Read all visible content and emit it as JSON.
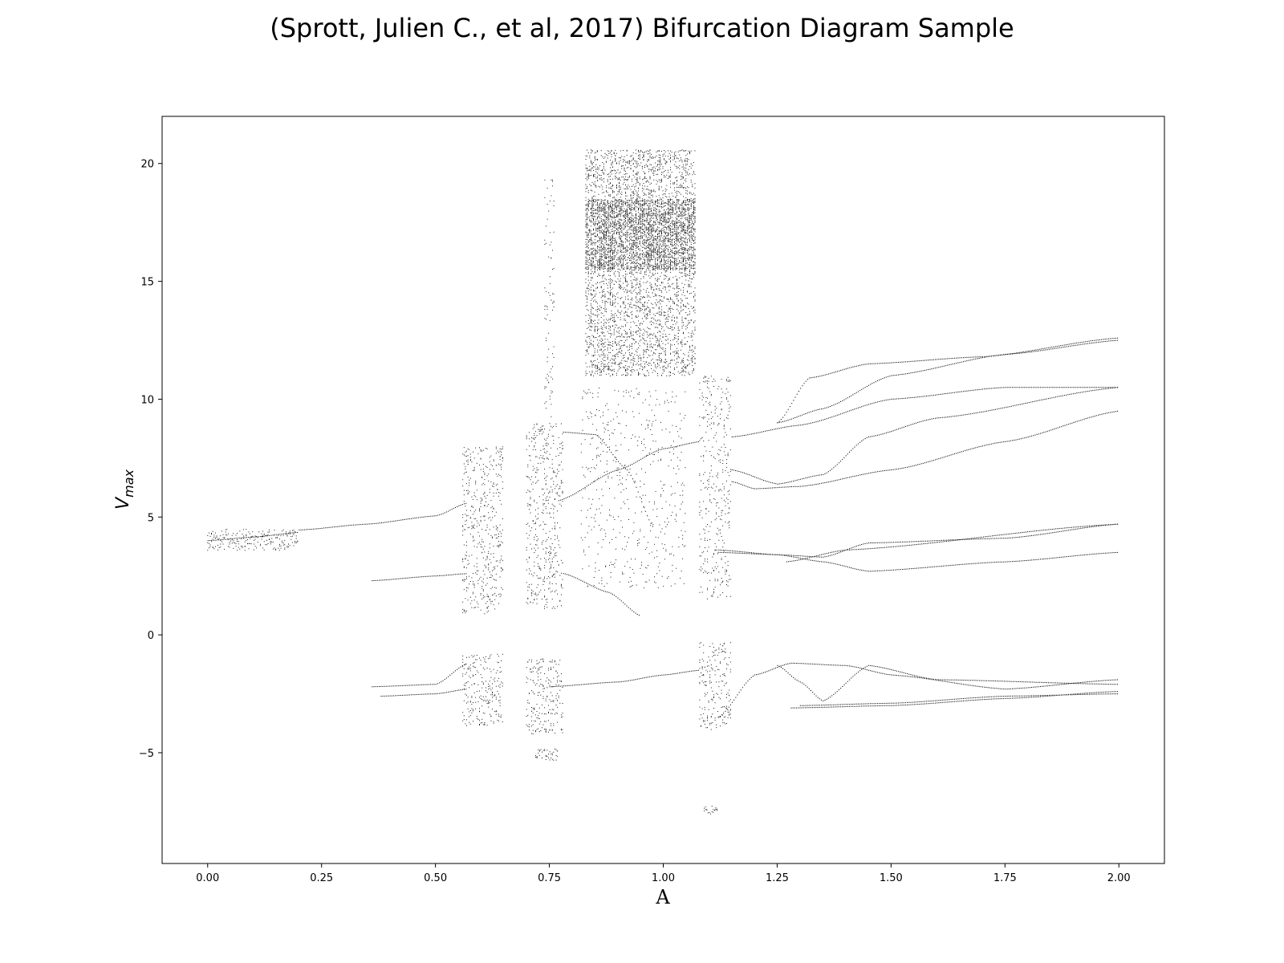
{
  "chart_data": {
    "type": "scatter",
    "title": "(Sprott, Julien C., et al, 2017) Bifurcation Diagram Sample",
    "xlabel": "A",
    "ylabel_main": "V",
    "ylabel_sub": "max",
    "xlim": [
      -0.1,
      2.1
    ],
    "ylim": [
      -9.7,
      22
    ],
    "xticks": [
      0.0,
      0.25,
      0.5,
      0.75,
      1.0,
      1.25,
      1.5,
      1.75,
      2.0
    ],
    "xtick_labels": [
      "0.00",
      "0.25",
      "0.50",
      "0.75",
      "1.00",
      "1.25",
      "1.50",
      "1.75",
      "2.00"
    ],
    "yticks": [
      -5,
      0,
      5,
      10,
      15,
      20
    ],
    "ytick_labels": [
      "−5",
      "0",
      "5",
      "10",
      "15",
      "20"
    ],
    "grid": false,
    "legend": "none",
    "point_color": "#000000",
    "branches": [
      {
        "x": [
          0.0,
          0.1,
          0.2
        ],
        "y": [
          4.0,
          4.15,
          4.35
        ]
      },
      {
        "x": [
          0.2,
          0.35,
          0.5,
          0.57
        ],
        "y": [
          4.45,
          4.7,
          5.05,
          5.6
        ]
      },
      {
        "x": [
          0.36,
          0.5,
          0.57
        ],
        "y": [
          2.3,
          2.5,
          2.6
        ]
      },
      {
        "x": [
          0.36,
          0.5,
          0.57
        ],
        "y": [
          -2.2,
          -2.1,
          -1.2
        ]
      },
      {
        "x": [
          0.38,
          0.5,
          0.57
        ],
        "y": [
          -2.6,
          -2.5,
          -2.3
        ]
      },
      {
        "x": [
          0.77,
          0.9,
          1.0,
          1.08
        ],
        "y": [
          5.7,
          7.0,
          7.9,
          8.2
        ]
      },
      {
        "x": [
          0.78,
          0.85,
          0.92,
          0.98
        ],
        "y": [
          8.6,
          8.5,
          7.0,
          4.5
        ]
      },
      {
        "x": [
          0.78,
          0.88,
          0.95
        ],
        "y": [
          2.6,
          1.8,
          0.8
        ]
      },
      {
        "x": [
          0.75,
          0.9,
          1.0,
          1.08
        ],
        "y": [
          -2.2,
          -2.0,
          -1.7,
          -1.5
        ]
      },
      {
        "x": [
          1.15,
          1.3,
          1.5,
          1.75,
          2.0
        ],
        "y": [
          8.4,
          8.9,
          10.0,
          10.5,
          10.5
        ]
      },
      {
        "x": [
          1.25,
          1.32,
          1.45,
          1.7,
          2.0
        ],
        "y": [
          9.0,
          10.9,
          11.5,
          11.8,
          12.6
        ]
      },
      {
        "x": [
          1.25,
          1.35,
          1.5,
          1.75,
          2.0
        ],
        "y": [
          9.0,
          9.6,
          11.0,
          11.9,
          12.5
        ]
      },
      {
        "x": [
          1.15,
          1.2,
          1.3,
          1.5,
          1.75,
          2.0
        ],
        "y": [
          6.5,
          6.2,
          6.3,
          7.0,
          8.2,
          9.5
        ]
      },
      {
        "x": [
          1.15,
          1.25,
          1.35,
          1.45,
          1.6,
          2.0
        ],
        "y": [
          7.0,
          6.4,
          6.8,
          8.4,
          9.2,
          10.5
        ]
      },
      {
        "x": [
          1.12,
          1.25,
          1.35,
          1.45,
          1.75,
          2.0
        ],
        "y": [
          3.5,
          3.4,
          3.3,
          3.9,
          4.1,
          4.7
        ]
      },
      {
        "x": [
          1.12,
          1.25,
          1.35,
          1.45,
          1.75,
          2.0
        ],
        "y": [
          3.6,
          3.4,
          3.1,
          2.7,
          3.1,
          3.5
        ]
      },
      {
        "x": [
          1.27,
          1.4,
          2.0
        ],
        "y": [
          3.1,
          3.6,
          4.7
        ]
      },
      {
        "x": [
          1.12,
          1.2,
          1.28,
          1.4,
          1.5,
          1.75,
          2.0
        ],
        "y": [
          -3.5,
          -1.7,
          -1.2,
          -1.3,
          -1.7,
          -2.3,
          -1.9
        ]
      },
      {
        "x": [
          1.25,
          1.3,
          1.35,
          1.45,
          1.6,
          2.0
        ],
        "y": [
          -1.3,
          -2.0,
          -2.8,
          -1.3,
          -1.9,
          -2.1
        ]
      },
      {
        "x": [
          1.28,
          1.5,
          1.75,
          2.0
        ],
        "y": [
          -3.1,
          -3.0,
          -2.7,
          -2.4
        ]
      },
      {
        "x": [
          1.3,
          1.5,
          1.75,
          2.0
        ],
        "y": [
          -3.0,
          -2.9,
          -2.6,
          -2.5
        ]
      }
    ],
    "chaos_bands": [
      {
        "x": [
          0.0,
          0.2
        ],
        "y": [
          3.6,
          4.5
        ],
        "density": 3
      },
      {
        "x": [
          0.56,
          0.65
        ],
        "y": [
          0.9,
          8.0
        ],
        "density": 14
      },
      {
        "x": [
          0.56,
          0.65
        ],
        "y": [
          -3.9,
          -0.8
        ],
        "density": 7
      },
      {
        "x": [
          0.7,
          0.78
        ],
        "y": [
          1.1,
          9.0
        ],
        "density": 16
      },
      {
        "x": [
          0.7,
          0.78
        ],
        "y": [
          -4.2,
          -1.0
        ],
        "density": 8
      },
      {
        "x": [
          0.74,
          0.76
        ],
        "y": [
          9.0,
          19.5
        ],
        "density": 10
      },
      {
        "x": [
          0.83,
          1.07
        ],
        "y": [
          11.0,
          20.6
        ],
        "density": 45
      },
      {
        "x": [
          0.83,
          1.07
        ],
        "y": [
          15.5,
          18.5
        ],
        "density": 30
      },
      {
        "x": [
          0.82,
          1.05
        ],
        "y": [
          2.0,
          10.5
        ],
        "density": 6
      },
      {
        "x": [
          1.08,
          1.15
        ],
        "y": [
          1.5,
          11.0
        ],
        "density": 14
      },
      {
        "x": [
          1.08,
          1.15
        ],
        "y": [
          -4.0,
          -0.3
        ],
        "density": 8
      },
      {
        "x": [
          1.09,
          1.12
        ],
        "y": [
          -7.6,
          -7.2
        ],
        "density": 2
      },
      {
        "x": [
          0.72,
          0.77
        ],
        "y": [
          -5.3,
          -4.8
        ],
        "density": 2
      }
    ]
  }
}
